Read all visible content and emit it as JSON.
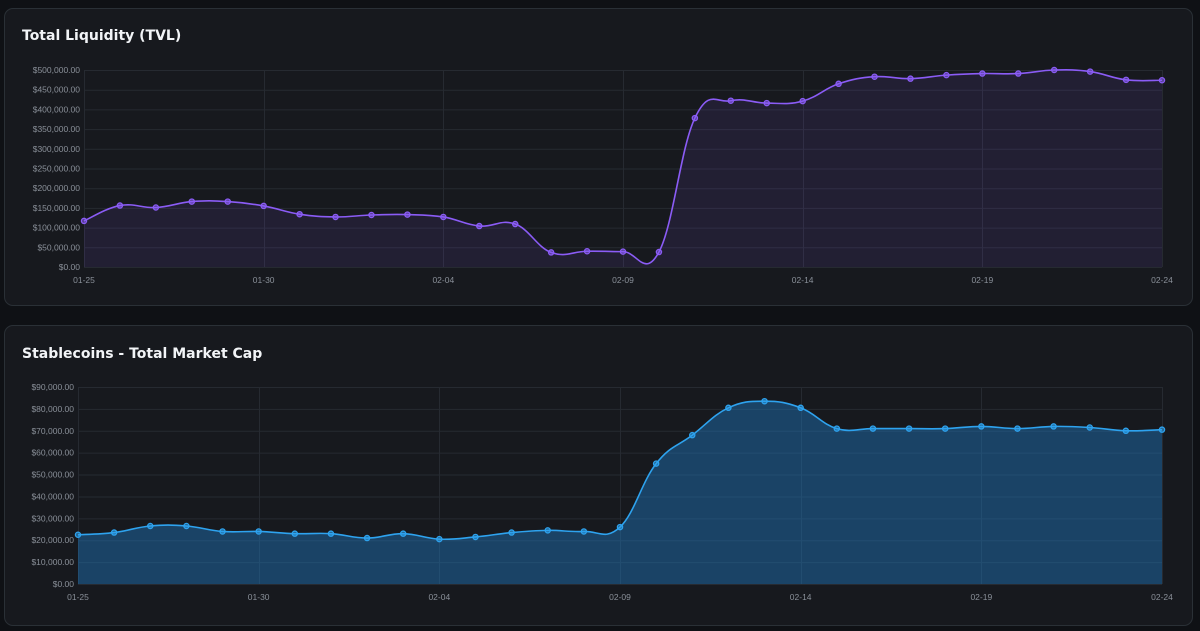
{
  "colors": {
    "tvl_line": "#8b5cf6",
    "tvl_fill": "rgba(139,92,246,0.10)",
    "stable_line": "#2ea3ef",
    "stable_fill": "rgba(30,120,190,0.45)"
  },
  "charts": {
    "tvl": {
      "title": "Total Liquidity (TVL)"
    },
    "stable": {
      "title": "Stablecoins - Total Market Cap"
    }
  },
  "chart_data": [
    {
      "id": "tvl",
      "type": "area",
      "title": "Total Liquidity (TVL)",
      "xlabel": "",
      "ylabel": "",
      "ylim": [
        0,
        500000
      ],
      "yticks": [
        0,
        50000,
        100000,
        150000,
        200000,
        250000,
        300000,
        350000,
        400000,
        450000,
        500000
      ],
      "ytick_labels": [
        "$0.00",
        "$50,000.00",
        "$100,000.00",
        "$150,000.00",
        "$200,000.00",
        "$250,000.00",
        "$300,000.00",
        "$350,000.00",
        "$400,000.00",
        "$450,000.00",
        "$500,000.00"
      ],
      "x": [
        "01-25",
        "01-26",
        "01-27",
        "01-28",
        "01-29",
        "01-30",
        "01-31",
        "02-01",
        "02-02",
        "02-03",
        "02-04",
        "02-05",
        "02-06",
        "02-07",
        "02-08",
        "02-09",
        "02-10",
        "02-11",
        "02-12",
        "02-13",
        "02-14",
        "02-15",
        "02-16",
        "02-17",
        "02-18",
        "02-19",
        "02-20",
        "02-21",
        "02-22",
        "02-23",
        "02-24"
      ],
      "xtick_labels": [
        "01-25",
        "01-30",
        "02-04",
        "02-09",
        "02-14",
        "02-19",
        "02-24"
      ],
      "values": [
        117000,
        156000,
        151000,
        166000,
        166000,
        155000,
        134000,
        127000,
        132000,
        133000,
        127000,
        104000,
        109000,
        37000,
        40000,
        39000,
        38000,
        378000,
        422000,
        416000,
        421000,
        465000,
        483000,
        478000,
        487000,
        491000,
        491000,
        500000,
        496000,
        475000,
        474000
      ],
      "grid": true,
      "legend": "none"
    },
    {
      "id": "stable",
      "type": "area",
      "title": "Stablecoins - Total Market Cap",
      "xlabel": "",
      "ylabel": "",
      "ylim": [
        0,
        90000
      ],
      "yticks": [
        0,
        10000,
        20000,
        30000,
        40000,
        50000,
        60000,
        70000,
        80000,
        90000
      ],
      "ytick_labels": [
        "$0.00",
        "$10,000.00",
        "$20,000.00",
        "$30,000.00",
        "$40,000.00",
        "$50,000.00",
        "$60,000.00",
        "$70,000.00",
        "$80,000.00",
        "$90,000.00"
      ],
      "x": [
        "01-25",
        "01-26",
        "01-27",
        "01-28",
        "01-29",
        "01-30",
        "01-31",
        "02-01",
        "02-02",
        "02-03",
        "02-04",
        "02-05",
        "02-06",
        "02-07",
        "02-08",
        "02-09",
        "02-10",
        "02-11",
        "02-12",
        "02-13",
        "02-14",
        "02-15",
        "02-16",
        "02-17",
        "02-18",
        "02-19",
        "02-20",
        "02-21",
        "02-22",
        "02-23",
        "02-24"
      ],
      "xtick_labels": [
        "01-25",
        "01-30",
        "02-04",
        "02-09",
        "02-14",
        "02-19",
        "02-24"
      ],
      "values": [
        22500,
        23500,
        26500,
        26500,
        24000,
        24000,
        23000,
        23000,
        21000,
        23000,
        20500,
        21500,
        23500,
        24500,
        24000,
        26000,
        55000,
        68000,
        80500,
        83500,
        80500,
        71000,
        71000,
        71000,
        71000,
        72000,
        71000,
        72000,
        71500,
        70000,
        70500
      ],
      "grid": true,
      "legend": "none"
    }
  ]
}
